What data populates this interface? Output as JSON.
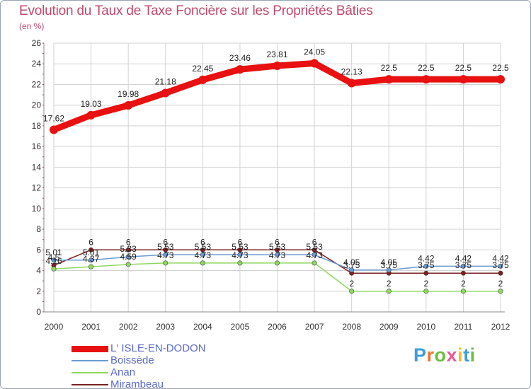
{
  "title": "Evolution du Taux de Taxe Foncière sur les Propriétés Bâties",
  "unit_label": "(en %)",
  "logo": {
    "text": "Proxiti",
    "letters": [
      "P",
      "r",
      "o",
      "x",
      "i",
      "t",
      "i"
    ],
    "letter_colors": [
      "#3aa0d8",
      "#e87830",
      "#6cbf3c",
      "#e85a9a",
      "#f0c020",
      "#3aa0d8",
      "#6cbf3c"
    ]
  },
  "colors": {
    "grid": "#d2d2d2",
    "axis_text": "#333333",
    "title": "#c0476a"
  },
  "chart_data": {
    "type": "line",
    "title": "Evolution du Taux de Taxe Foncière sur les Propriétés Bâties",
    "xlabel": "",
    "ylabel": "(en %)",
    "x": [
      "2000",
      "2001",
      "2002",
      "2003",
      "2004",
      "2005",
      "2006",
      "2007",
      "2008",
      "2009",
      "2010",
      "2011",
      "2012"
    ],
    "ylim": [
      0,
      26
    ],
    "yticks": [
      0,
      2,
      4,
      6,
      8,
      10,
      12,
      14,
      16,
      18,
      20,
      22,
      24,
      26
    ],
    "grid": true,
    "legend_position": "bottom-left",
    "series": [
      {
        "name": "L' ISLE-EN-DODON",
        "color": "#e81010",
        "legend_text_color": "#5a6bc8",
        "values": [
          17.62,
          19.03,
          19.98,
          21.18,
          22.45,
          23.46,
          23.81,
          24.05,
          22.13,
          22.5,
          22.5,
          22.5,
          22.5
        ],
        "labels": [
          "17.62",
          "19.03",
          "19.98",
          "21.18",
          "22.45",
          "23.46",
          "23.81",
          "24.05",
          "22.13",
          "22.5",
          "22.5",
          "22.5",
          "22.5"
        ]
      },
      {
        "name": "Boissède",
        "color": "#6a9bd0",
        "legend_text_color": "#5a6bc8",
        "values": [
          5.01,
          5.01,
          5.33,
          5.53,
          5.53,
          5.53,
          5.53,
          5.53,
          4.05,
          4.05,
          4.42,
          4.42,
          4.42
        ],
        "labels": [
          "5.01",
          "5.01",
          "5.33",
          "5.53",
          "5.53",
          "5.53",
          "5.53",
          "5.53",
          "4.05",
          "4.05",
          "4.42",
          "4.42",
          "4.42"
        ]
      },
      {
        "name": "Anan",
        "color": "#8fd860",
        "legend_text_color": "#5a6bc8",
        "values": [
          4.16,
          4.37,
          4.59,
          4.73,
          4.73,
          4.73,
          4.73,
          4.73,
          2,
          2,
          2,
          2,
          2
        ],
        "labels": [
          "4.16",
          "4.37",
          "4.59",
          "4.73",
          "4.73",
          "4.73",
          "4.73",
          "4.73",
          "2",
          "2",
          "2",
          "2",
          "2"
        ]
      },
      {
        "name": "Mirambeau",
        "color": "#7a2020",
        "legend_text_color": "#5a6bc8",
        "values": [
          4.5,
          6,
          6,
          6,
          6,
          6,
          6,
          6,
          3.75,
          3.75,
          3.75,
          3.75,
          3.75
        ],
        "labels": [
          "4.5",
          "6",
          "6",
          "6",
          "6",
          "6",
          "6",
          "6",
          "3.75",
          "3.75",
          "3.75",
          "3.75",
          "3.75"
        ]
      }
    ]
  }
}
